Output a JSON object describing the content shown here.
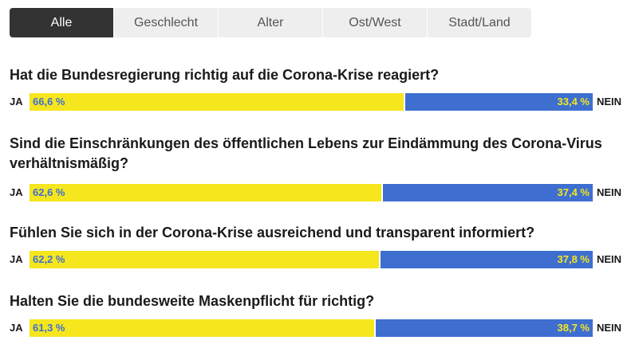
{
  "tabs": [
    {
      "label": "Alle",
      "active": true
    },
    {
      "label": "Geschlecht",
      "active": false
    },
    {
      "label": "Alter",
      "active": false
    },
    {
      "label": "Ost/West",
      "active": false
    },
    {
      "label": "Stadt/Land",
      "active": false
    }
  ],
  "labels": {
    "yes": "JA",
    "no": "NEIN"
  },
  "colors": {
    "yes": "#f5e61e",
    "no": "#3e6fd0",
    "tab_active": "#333333",
    "tab_inactive": "#eeeeee"
  },
  "chart_data": {
    "type": "bar",
    "stacked": true,
    "orientation": "horizontal",
    "categories": [
      "Hat die Bundesregierung richtig auf die Corona-Krise reagiert?",
      "Sind die Einschränkungen des öffentlichen Lebens zur Eindämmung des Corona-Virus verhältnismäßig?",
      "Fühlen Sie sich in der Corona-Krise ausreichend und transparent informiert?",
      "Halten Sie die bundesweite Maskenpflicht für richtig?"
    ],
    "series": [
      {
        "name": "JA",
        "values": [
          66.6,
          62.6,
          62.2,
          61.3
        ],
        "labels": [
          "66,6 %",
          "62,6 %",
          "62,2 %",
          "61,3 %"
        ]
      },
      {
        "name": "NEIN",
        "values": [
          33.4,
          37.4,
          37.8,
          38.7
        ],
        "labels": [
          "33,4 %",
          "37,4 %",
          "37,8 %",
          "38,7 %"
        ]
      }
    ],
    "xlim": [
      0,
      100
    ]
  }
}
